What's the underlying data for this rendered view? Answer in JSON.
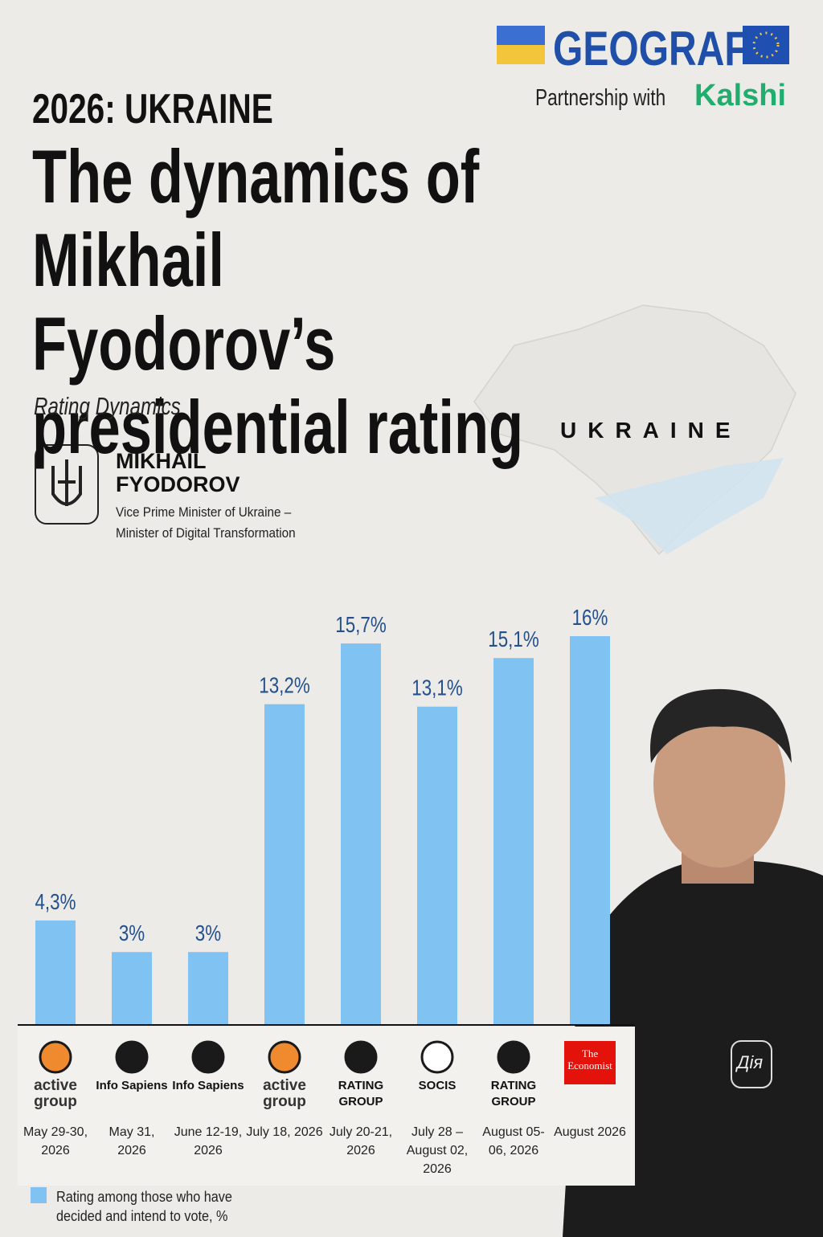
{
  "header": {
    "brand": "GEOGRAF",
    "partnership": "Partnership with",
    "partner": "Kalshi",
    "kicker": "2026: UKRAINE",
    "map_label": "UKRAINE"
  },
  "person": {
    "name": "MIKHAIL FYODOROV",
    "role": "Vice Prime Minister of Ukraine – Minister of Digital Transformation",
    "hoodie_text": "Дія"
  },
  "chart_data": {
    "type": "bar",
    "title": "The dynamics of Mikhail Fyodorov’s presidential rating",
    "subtitle": "Rating Dynamics",
    "categories": [
      "May 29-30, 2026",
      "May 31, 2026",
      "June 12-19, 2026",
      "July 18, 2026",
      "July 20-21, 2026",
      "July 28 – August 02, 2026",
      "August 05-06, 2026",
      "August 2026"
    ],
    "pollsters": [
      "active group",
      "Info Sapiens",
      "Info Sapiens",
      "active group",
      "RATING GROUP",
      "SOCIS",
      "RATING GROUP",
      "The Economist"
    ],
    "series": [
      {
        "name": "Rating among those who have decided and intend to vote, %",
        "color": "#80c2f1",
        "values": [
          4.3,
          3,
          3,
          13.2,
          15.7,
          13.1,
          15.1,
          16
        ],
        "value_labels": [
          "4,3%",
          "3%",
          "3%",
          "13,2%",
          "15,7%",
          "13,1%",
          "15,1%",
          "16%"
        ]
      }
    ],
    "ylim": [
      0,
      16
    ]
  }
}
